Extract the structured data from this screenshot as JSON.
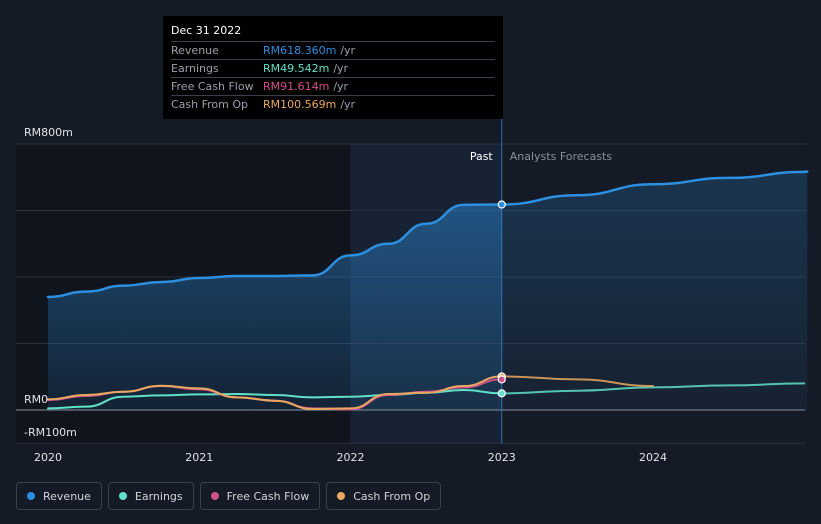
{
  "tooltip": {
    "date": "Dec 31 2022",
    "rows": [
      {
        "label": "Revenue",
        "value": "RM618.360m",
        "unit": "/yr",
        "color": "#2d8fe0"
      },
      {
        "label": "Earnings",
        "value": "RM49.542m",
        "unit": "/yr",
        "color": "#5fe0c8"
      },
      {
        "label": "Free Cash Flow",
        "value": "RM91.614m",
        "unit": "/yr",
        "color": "#d0508a"
      },
      {
        "label": "Cash From Op",
        "value": "RM100.569m",
        "unit": "/yr",
        "color": "#e8a860"
      }
    ]
  },
  "legend": [
    {
      "label": "Revenue",
      "color": "#2d8fe0"
    },
    {
      "label": "Earnings",
      "color": "#5fe0c8"
    },
    {
      "label": "Free Cash Flow",
      "color": "#d0508a"
    },
    {
      "label": "Cash From Op",
      "color": "#e8a860"
    }
  ],
  "chart_data": {
    "type": "line",
    "title": "",
    "units": "RM m",
    "y_axis_labels": [
      {
        "label": "RM800m",
        "value": 800
      },
      {
        "label": "RM0",
        "value": 0
      },
      {
        "label": "-RM100m",
        "value": -100
      }
    ],
    "ylim": [
      -100,
      800
    ],
    "gridlines": [
      800,
      600,
      400,
      200,
      0,
      -100
    ],
    "xlim": [
      2020,
      2025
    ],
    "x_ticks": [
      {
        "label": "2020",
        "value": 2020
      },
      {
        "label": "2021",
        "value": 2021
      },
      {
        "label": "2022",
        "value": 2022
      },
      {
        "label": "2023",
        "value": 2023
      },
      {
        "label": "2024",
        "value": 2024
      }
    ],
    "past_label": "Past",
    "forecast_label": "Analysts Forecasts",
    "divider_x": 2023,
    "highlight_start": 2022,
    "series": [
      {
        "name": "Revenue",
        "color": "#2d8fe0",
        "fill": true,
        "width": 2.5,
        "points": [
          [
            2020,
            340
          ],
          [
            2020.25,
            356
          ],
          [
            2020.5,
            374
          ],
          [
            2020.75,
            385
          ],
          [
            2021,
            397
          ],
          [
            2021.25,
            403
          ],
          [
            2021.5,
            403
          ],
          [
            2021.75,
            405
          ],
          [
            2022,
            465
          ],
          [
            2022.25,
            500
          ],
          [
            2022.5,
            560
          ],
          [
            2022.75,
            617
          ],
          [
            2023,
            618
          ]
        ]
      },
      {
        "name": "Revenue forecast",
        "color": "#2d8fe0",
        "fill": true,
        "width": 2.5,
        "points": [
          [
            2023,
            618
          ],
          [
            2023.5,
            646
          ],
          [
            2024,
            679
          ],
          [
            2024.5,
            698
          ],
          [
            2025,
            716
          ]
        ]
      },
      {
        "name": "Earnings",
        "color": "#5fe0c8",
        "fill": false,
        "width": 2,
        "points": [
          [
            2020,
            5
          ],
          [
            2020.25,
            10
          ],
          [
            2020.5,
            40
          ],
          [
            2020.75,
            44
          ],
          [
            2021,
            47
          ],
          [
            2021.25,
            48
          ],
          [
            2021.5,
            45
          ],
          [
            2021.75,
            38
          ],
          [
            2022,
            40
          ],
          [
            2022.25,
            45
          ],
          [
            2022.5,
            52
          ],
          [
            2022.75,
            60
          ],
          [
            2023,
            50
          ]
        ]
      },
      {
        "name": "Earnings forecast",
        "color": "#5fe0c8",
        "fill": false,
        "width": 2,
        "points": [
          [
            2023,
            50
          ],
          [
            2023.5,
            58
          ],
          [
            2024,
            68
          ],
          [
            2024.5,
            74
          ],
          [
            2025,
            80
          ]
        ]
      },
      {
        "name": "Free Cash Flow",
        "color": "#d0508a",
        "fill": false,
        "width": 2,
        "points": [
          [
            2020,
            30
          ],
          [
            2020.25,
            42
          ],
          [
            2020.5,
            55
          ],
          [
            2020.75,
            72
          ],
          [
            2021,
            62
          ],
          [
            2021.25,
            38
          ],
          [
            2021.5,
            28
          ],
          [
            2021.75,
            5
          ],
          [
            2022,
            2
          ],
          [
            2022.25,
            45
          ],
          [
            2022.5,
            55
          ],
          [
            2022.75,
            68
          ],
          [
            2023,
            92
          ]
        ]
      },
      {
        "name": "Cash From Op",
        "color": "#e8a860",
        "fill": false,
        "width": 2,
        "points": [
          [
            2020,
            32
          ],
          [
            2020.25,
            45
          ],
          [
            2020.5,
            55
          ],
          [
            2020.75,
            73
          ],
          [
            2021,
            65
          ],
          [
            2021.25,
            38
          ],
          [
            2021.5,
            28
          ],
          [
            2021.75,
            3
          ],
          [
            2022,
            5
          ],
          [
            2022.25,
            48
          ],
          [
            2022.5,
            52
          ],
          [
            2022.75,
            72
          ],
          [
            2023,
            101
          ]
        ]
      },
      {
        "name": "Cash From Op forecast",
        "color": "#e8a860",
        "fill": false,
        "width": 2,
        "points": [
          [
            2023,
            101
          ],
          [
            2023.5,
            92
          ],
          [
            2024,
            72
          ]
        ]
      }
    ],
    "markers": [
      {
        "series": "Revenue",
        "x": 2023,
        "y": 618
      },
      {
        "series": "Cash From Op",
        "x": 2023,
        "y": 101
      },
      {
        "series": "Free Cash Flow",
        "x": 2023,
        "y": 92
      },
      {
        "series": "Earnings",
        "x": 2023,
        "y": 50
      }
    ]
  }
}
